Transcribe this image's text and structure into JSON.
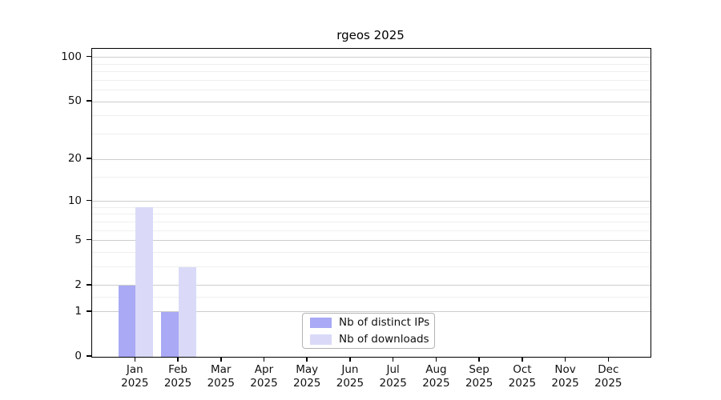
{
  "chart_data": {
    "type": "bar",
    "title": "rgeos 2025",
    "categories": [
      "Jan",
      "Feb",
      "Mar",
      "Apr",
      "May",
      "Jun",
      "Jul",
      "Aug",
      "Sep",
      "Oct",
      "Nov",
      "Dec"
    ],
    "category_year": "2025",
    "series": [
      {
        "name": "Nb of distinct IPs",
        "color": "#a9a9f5",
        "values": [
          2,
          1,
          0,
          0,
          0,
          0,
          0,
          0,
          0,
          0,
          0,
          0
        ]
      },
      {
        "name": "Nb of downloads",
        "color": "#dadaf8",
        "values": [
          9,
          3,
          0,
          0,
          0,
          0,
          0,
          0,
          0,
          0,
          0,
          0
        ]
      }
    ],
    "xlabel": "",
    "ylabel": "",
    "yscale": "log1p",
    "ylim": [
      0,
      114
    ],
    "y_major_ticks": [
      0,
      1,
      2,
      5,
      10,
      20,
      50,
      100
    ],
    "y_minor_gridlines": [
      1.5,
      3,
      4,
      6,
      7,
      8,
      9,
      15,
      30,
      40,
      60,
      70,
      80,
      90
    ],
    "grid": "on",
    "grid_major_color": "#cccccc",
    "grid_minor_color": "#efefef",
    "legend_position": "inside-bottom-center",
    "legend_entries": [
      "Nb of distinct IPs",
      "Nb of downloads"
    ]
  }
}
